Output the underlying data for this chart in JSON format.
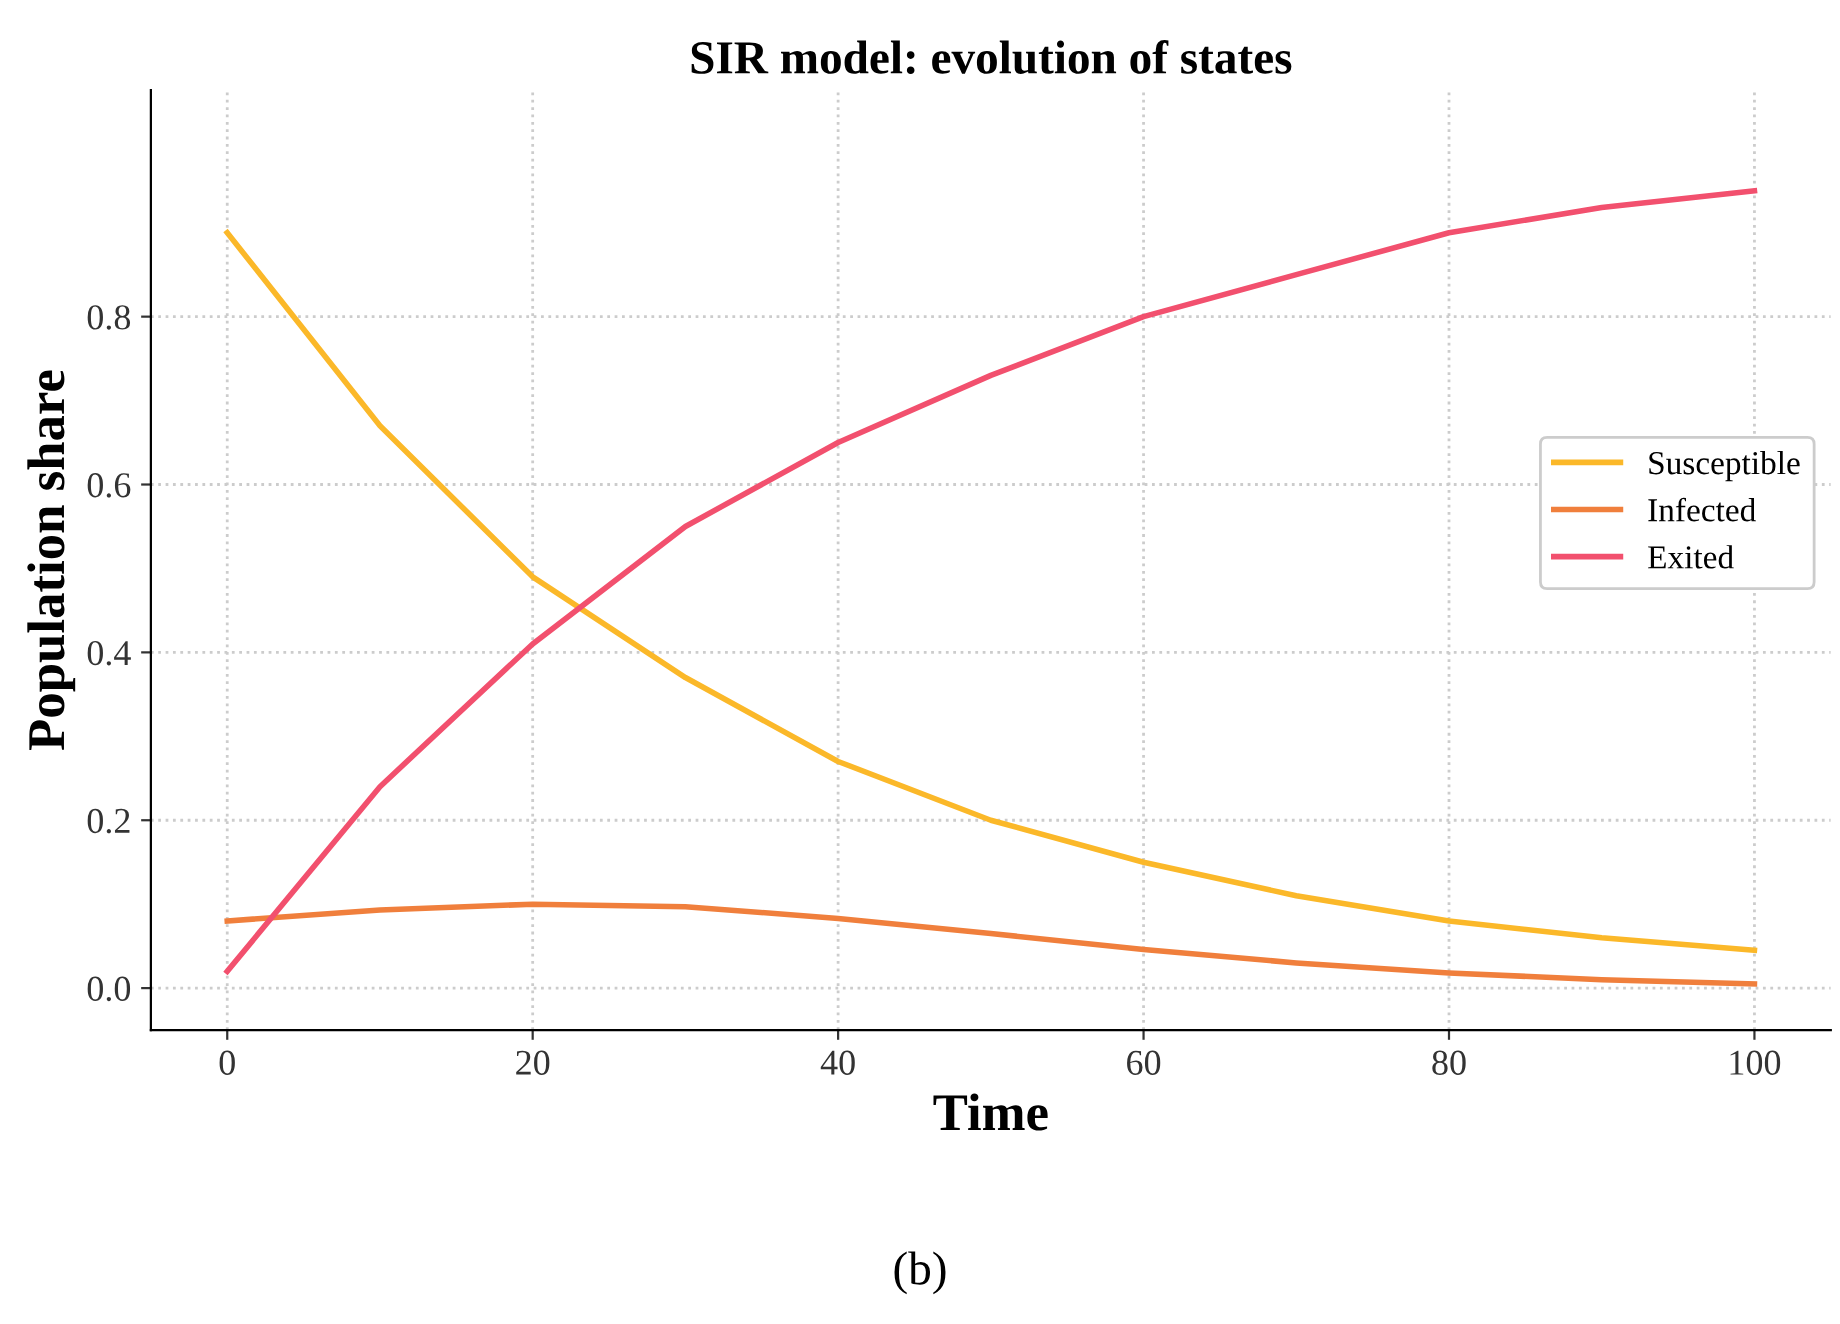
{
  "chart_data": {
    "type": "line",
    "title": "SIR model: evolution of states",
    "xlabel": "Time",
    "ylabel": "Population share",
    "x": [
      0,
      10,
      20,
      30,
      40,
      50,
      60,
      70,
      80,
      90,
      100
    ],
    "series": [
      {
        "name": "Susceptible",
        "color": "#fbb829",
        "values": [
          0.9,
          0.67,
          0.49,
          0.37,
          0.27,
          0.2,
          0.15,
          0.11,
          0.08,
          0.06,
          0.045
        ]
      },
      {
        "name": "Infected",
        "color": "#f07f3c",
        "values": [
          0.08,
          0.093,
          0.1,
          0.097,
          0.083,
          0.065,
          0.046,
          0.03,
          0.018,
          0.01,
          0.005
        ]
      },
      {
        "name": "Exited",
        "color": "#f2506e",
        "values": [
          0.02,
          0.24,
          0.41,
          0.55,
          0.65,
          0.73,
          0.8,
          0.85,
          0.9,
          0.93,
          0.95
        ]
      }
    ],
    "xlim": [
      -5,
      105
    ],
    "ylim": [
      -0.05,
      1.07
    ],
    "xticks": [
      0,
      20,
      40,
      60,
      80,
      100
    ],
    "yticks": [
      {
        "value": 0,
        "label": "0.0"
      },
      0.2,
      0.4,
      0.6,
      0.8
    ],
    "grid": true,
    "legend": "right",
    "marker": "none",
    "line_style": "solid",
    "annotations": [
      "(b)"
    ]
  }
}
